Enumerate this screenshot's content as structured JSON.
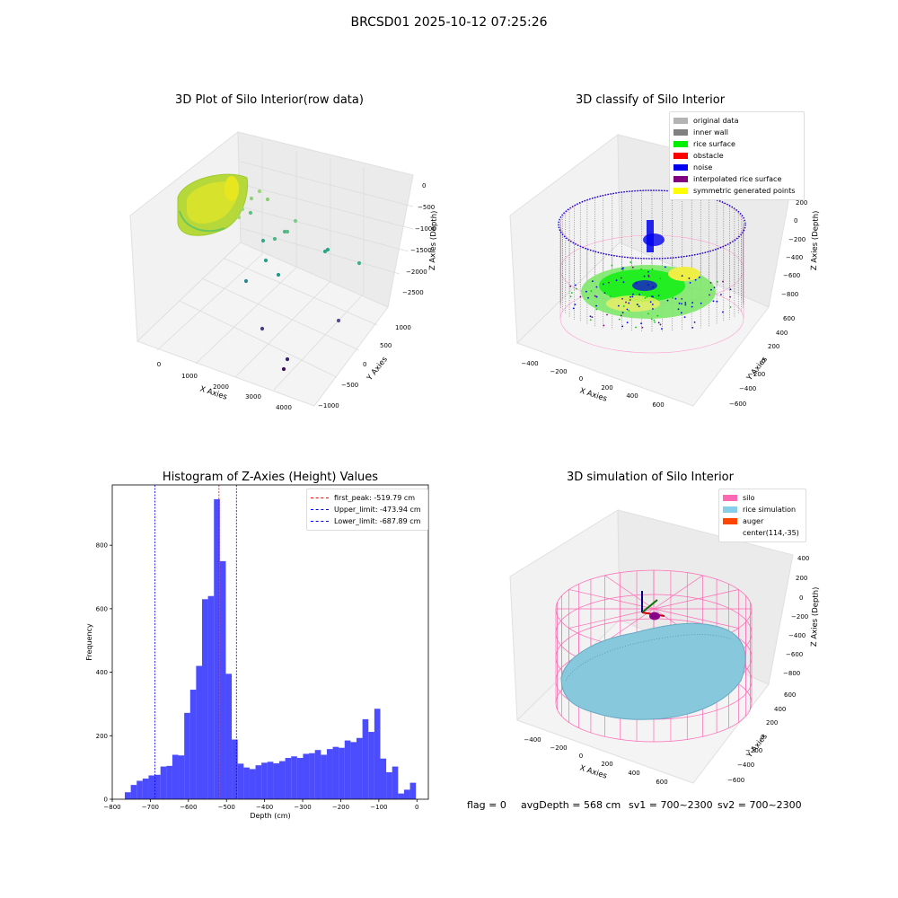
{
  "figure_title": "BRCSD01 2025-10-12 07:25:26",
  "panels": {
    "raw": {
      "title": "3D Plot of Silo Interior(row data)",
      "xlabel": "X Axies",
      "ylabel": "Y Axies",
      "zlabel": "Z Axies (Depth)",
      "xticks": [
        "0",
        "1000",
        "2000",
        "3000",
        "4000"
      ],
      "yticks": [
        "1000",
        "500",
        "0",
        "−500",
        "−1000"
      ],
      "zticks": [
        "0",
        "−500",
        "−1000",
        "−1500",
        "−2000",
        "−2500"
      ]
    },
    "classify": {
      "title": "3D classify of Silo Interior",
      "xlabel": "X Axies",
      "ylabel": "Y Axies",
      "zlabel": "Z Axies (Depth)",
      "xticks": [
        "−400",
        "−200",
        "0",
        "200",
        "400",
        "600"
      ],
      "yticks": [
        "600",
        "400",
        "200",
        "0",
        "−200",
        "−400",
        "−600"
      ],
      "zticks": [
        "200",
        "0",
        "−200",
        "−400",
        "−600",
        "−800"
      ],
      "legend": [
        {
          "label": "original data",
          "color": "#b4b4b4"
        },
        {
          "label": "inner wall",
          "color": "#808080"
        },
        {
          "label": "rice surface",
          "color": "#00ee00"
        },
        {
          "label": "obstacle",
          "color": "#ff0000"
        },
        {
          "label": "noise",
          "color": "#0000ee"
        },
        {
          "label": "interpolated rice surface",
          "color": "#800080"
        },
        {
          "label": "symmetric generated points",
          "color": "#ffff00"
        }
      ]
    },
    "simulation": {
      "title": "3D simulation of Silo Interior",
      "xlabel": "X Axies",
      "ylabel": "Y Axies",
      "zlabel": "Z Axies (Depth)",
      "xticks": [
        "−400",
        "−200",
        "0",
        "200",
        "400",
        "600"
      ],
      "yticks": [
        "600",
        "400",
        "200",
        "0",
        "−200",
        "−400",
        "−600"
      ],
      "zticks": [
        "400",
        "200",
        "0",
        "−200",
        "−400",
        "−600",
        "−800"
      ],
      "legend": [
        {
          "label": "silo",
          "color": "#ff69b4"
        },
        {
          "label": "rice simulation",
          "color": "#87ceeb"
        },
        {
          "label": "auger",
          "color": "#ff4500"
        },
        {
          "label": "center(114,-35)",
          "color": ""
        }
      ]
    }
  },
  "chart_data": {
    "type": "bar",
    "title": "Histogram of Z-Axies (Height) Values",
    "xlabel": "Depth (cm)",
    "ylabel": "Frequency",
    "xlim": [
      -800,
      30
    ],
    "ylim": [
      0,
      990
    ],
    "xticks": [
      -800,
      -700,
      -600,
      -500,
      -400,
      -300,
      -200,
      -100,
      0
    ],
    "yticks": [
      0,
      200,
      400,
      600,
      800
    ],
    "bin_start": -767,
    "bin_width": 15.6,
    "values": [
      22,
      45,
      58,
      65,
      75,
      77,
      103,
      105,
      140,
      138,
      272,
      345,
      420,
      630,
      640,
      945,
      750,
      395,
      188,
      112,
      100,
      95,
      107,
      115,
      118,
      113,
      120,
      130,
      135,
      130,
      143,
      145,
      155,
      140,
      158,
      165,
      162,
      185,
      180,
      193,
      252,
      212,
      285,
      128,
      85,
      103,
      18,
      30,
      52
    ],
    "bar_color": "#0000ff",
    "vlines": [
      {
        "label": "first_peak: -519.79 cm",
        "x": -519.79,
        "color": "#ff0000"
      },
      {
        "label": "Upper_limit: -473.94 cm",
        "x": -473.94,
        "color": "#0000ff"
      },
      {
        "label": "Lower_limit: -687.89 cm",
        "x": -687.89,
        "color": "#0000ff"
      }
    ],
    "legend_position": "upper right"
  },
  "footer": {
    "flag": "flag = 0",
    "avg": "avgDepth = 568 cm",
    "sv1": "sv1 = 700~2300",
    "sv2": "sv2 = 700~2300"
  }
}
